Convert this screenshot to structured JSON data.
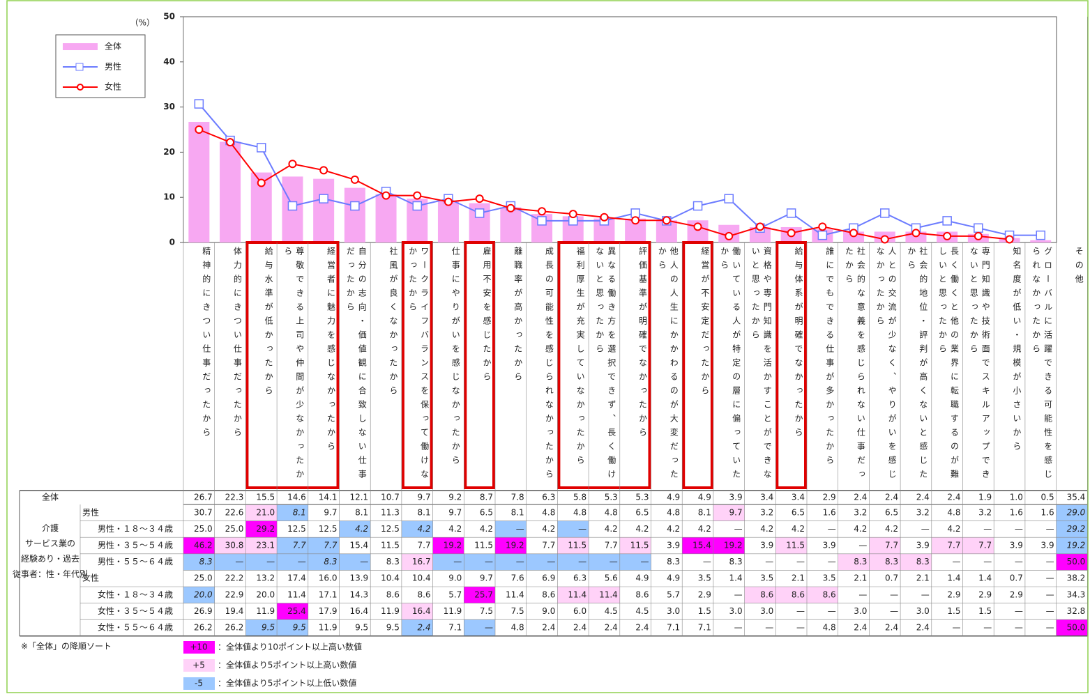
{
  "chart": {
    "unit": "（%）",
    "ylim": [
      0,
      50
    ],
    "yticks": [
      0,
      10,
      20,
      30,
      40,
      50
    ],
    "legend": [
      {
        "name": "全体",
        "color": "#f7a8f2"
      },
      {
        "name": "男性",
        "color": "#6b7bff"
      },
      {
        "name": "女性",
        "color": "#ff0000"
      }
    ]
  },
  "table": {
    "columns": [
      "精神的にきつい仕事だったから",
      "体力的にきつい仕事だったから",
      "給与水準が低かったから",
      "尊敬できる上司や仲間が少なかったから",
      "経営者に魅力を感じなかったから",
      "自分の志向・価値観に合致しない仕事だったから",
      "社風が良くなかったから",
      "ワークライフバランスを保って働けなかったから",
      "仕事にやりがいを感じなかったから",
      "雇用不安を感じたから",
      "離職率が高かったから",
      "成長の可能性を感じられなかったから",
      "福利厚生が充実していなかったから",
      "異なる働き方を選択できず、長く働けないと思ったから",
      "評価基準が明確でなかったから",
      "他人の人生にかかわるのが大変だったから",
      "経営が不安定だったから",
      "働いている人が特定の層に偏っていたから",
      "資格や専門知識を活かすことができないと思ったから",
      "給与体系が明確でなかったから",
      "誰にでもできる仕事が多かったから",
      "社会的な意義を感じられない仕事だったから",
      "人との交流が少なく、やりがいを感じなかったから",
      "社会的地位・評判が高くないと感じたから",
      "長く働くと他の業界に転職するのが難しいと思ったから",
      "専門知識や技術面でスキルアップできないと思ったから",
      "知名度が低い・規模が小さいから",
      "グローバルに活躍できる可能性を感じられなかったから",
      "その他"
    ],
    "overall_label": "全体",
    "overall": [
      "26.7",
      "22.3",
      "15.5",
      "14.6",
      "14.1",
      "12.1",
      "10.7",
      "9.7",
      "9.2",
      "8.7",
      "7.8",
      "6.3",
      "5.8",
      "5.3",
      "5.3",
      "4.9",
      "4.9",
      "3.9",
      "3.4",
      "3.4",
      "2.9",
      "2.4",
      "2.4",
      "2.4",
      "2.4",
      "1.9",
      "1.0",
      "0.5",
      "35.4"
    ],
    "group_label": "介護サービス業の経験あり・過去従事者：性・年代別",
    "rows": [
      {
        "label": "男性",
        "values": [
          "30.7",
          "22.6",
          "21.0",
          "8.1",
          "9.7",
          "8.1",
          "11.3",
          "8.1",
          "9.7",
          "6.5",
          "8.1",
          "4.8",
          "4.8",
          "4.8",
          "6.5",
          "4.8",
          "8.1",
          "9.7",
          "3.2",
          "6.5",
          "1.6",
          "3.2",
          "6.5",
          "3.2",
          "4.8",
          "3.2",
          "1.6",
          "1.6",
          "29.0"
        ]
      },
      {
        "label": "男性・１８～３４歳",
        "values": [
          "25.0",
          "25.0",
          "29.2",
          "12.5",
          "12.5",
          "4.2",
          "12.5",
          "4.2",
          "4.2",
          "4.2",
          "—",
          "4.2",
          "—",
          "4.2",
          "4.2",
          "4.2",
          "4.2",
          "—",
          "4.2",
          "4.2",
          "—",
          "4.2",
          "4.2",
          "—",
          "4.2",
          "—",
          "—",
          "—",
          "29.2"
        ]
      },
      {
        "label": "男性・３５～５４歳",
        "values": [
          "46.2",
          "30.8",
          "23.1",
          "7.7",
          "7.7",
          "15.4",
          "11.5",
          "7.7",
          "19.2",
          "11.5",
          "19.2",
          "7.7",
          "11.5",
          "7.7",
          "11.5",
          "3.9",
          "15.4",
          "19.2",
          "3.9",
          "11.5",
          "3.9",
          "—",
          "7.7",
          "3.9",
          "7.7",
          "7.7",
          "3.9",
          "3.9",
          "19.2"
        ]
      },
      {
        "label": "男性・５５～６４歳",
        "values": [
          "8.3",
          "—",
          "—",
          "—",
          "8.3",
          "—",
          "8.3",
          "16.7",
          "—",
          "—",
          "—",
          "—",
          "—",
          "—",
          "—",
          "8.3",
          "—",
          "8.3",
          "—",
          "—",
          "—",
          "8.3",
          "8.3",
          "8.3",
          "—",
          "—",
          "—",
          "—",
          "50.0"
        ]
      },
      {
        "label": "女性",
        "values": [
          "25.0",
          "22.2",
          "13.2",
          "17.4",
          "16.0",
          "13.9",
          "10.4",
          "10.4",
          "9.0",
          "9.7",
          "7.6",
          "6.9",
          "6.3",
          "5.6",
          "4.9",
          "4.9",
          "3.5",
          "1.4",
          "3.5",
          "2.1",
          "3.5",
          "2.1",
          "0.7",
          "2.1",
          "1.4",
          "1.4",
          "0.7",
          "—",
          "38.2"
        ]
      },
      {
        "label": "女性・１８～３４歳",
        "values": [
          "20.0",
          "22.9",
          "20.0",
          "11.4",
          "17.1",
          "14.3",
          "8.6",
          "8.6",
          "5.7",
          "25.7",
          "11.4",
          "8.6",
          "11.4",
          "11.4",
          "8.6",
          "5.7",
          "2.9",
          "—",
          "8.6",
          "8.6",
          "8.6",
          "—",
          "—",
          "—",
          "2.9",
          "2.9",
          "2.9",
          "—",
          "34.3"
        ]
      },
      {
        "label": "女性・３５～５４歳",
        "values": [
          "26.9",
          "19.4",
          "11.9",
          "25.4",
          "17.9",
          "16.4",
          "11.9",
          "16.4",
          "11.9",
          "7.5",
          "7.5",
          "9.0",
          "6.0",
          "4.5",
          "4.5",
          "3.0",
          "1.5",
          "3.0",
          "3.0",
          "—",
          "—",
          "3.0",
          "—",
          "3.0",
          "1.5",
          "1.5",
          "—",
          "—",
          "32.8"
        ]
      },
      {
        "label": "女性・５５～６４歳",
        "values": [
          "26.2",
          "26.2",
          "9.5",
          "9.5",
          "11.9",
          "9.5",
          "9.5",
          "2.4",
          "7.1",
          "—",
          "4.8",
          "2.4",
          "2.4",
          "2.4",
          "2.4",
          "7.1",
          "7.1",
          "—",
          "—",
          "—",
          "4.8",
          "2.4",
          "2.4",
          "2.4",
          "—",
          "—",
          "—",
          "—",
          "50.0"
        ]
      }
    ]
  },
  "note": "※「全体」の降順ソート",
  "highlight_legend": [
    {
      "value": 10,
      "label": "+10",
      "color": "#ff00ff",
      "text": "：全体値より10ポイント以上高い数値"
    },
    {
      "value": 5,
      "label": "+5",
      "color": "#ffd2f8",
      "text": "：全体値より5ポイント以上高い数値"
    },
    {
      "value": -5,
      "label": "-5",
      "color": "#9cc8ff",
      "text": "：全体値より5ポイント以上低い数値"
    }
  ]
}
